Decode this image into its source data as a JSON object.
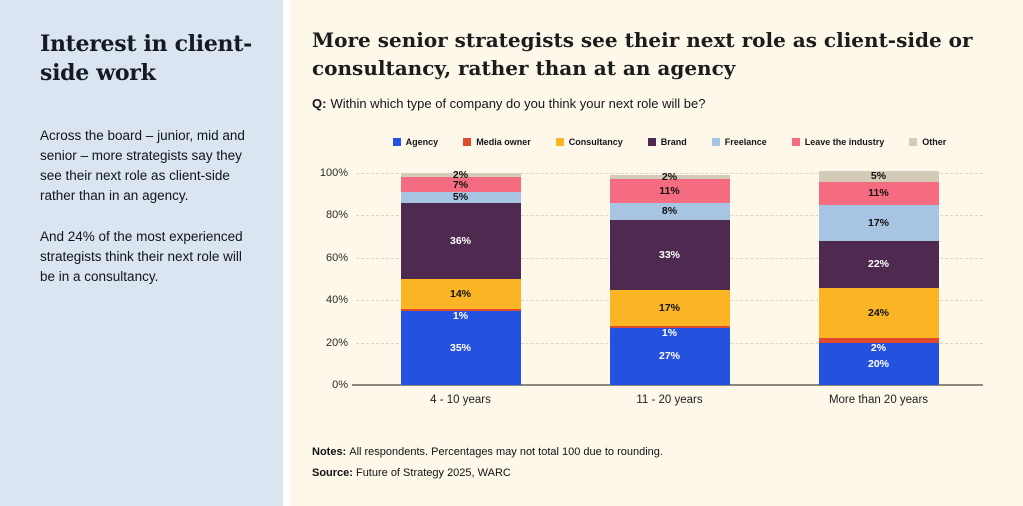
{
  "sidebar": {
    "title": "Interest in client-side work",
    "paragraphs": [
      "Across the board – junior, mid and senior – more strategists say they see their next role as client-side rather than in an agency.",
      "And 24% of the most experienced strategists think their next role will be in a consultancy."
    ],
    "background_color": "#dbe5f1"
  },
  "main": {
    "title": "More senior strategists see their next role as client-side or consultancy, rather than at an agency",
    "question_prefix": "Q:",
    "question": "Within which type of company do you think your next role will be?",
    "notes_prefix": "Notes:",
    "notes": "All respondents. Percentages may not total 100 due to rounding.",
    "source_prefix": "Source:",
    "source": "Future of Strategy 2025, WARC",
    "background_color": "#fdf8e9"
  },
  "chart_data": {
    "type": "bar",
    "stacked": true,
    "categories": [
      "4 - 10 years",
      "11 - 20 years",
      "More than 20 years"
    ],
    "series": [
      {
        "name": "Agency",
        "color": "#2452df",
        "label_color": "#ffffff",
        "values": [
          35,
          27,
          20
        ]
      },
      {
        "name": "Media owner",
        "color": "#dd4a2e",
        "label_color": "#ffffff",
        "values": [
          1,
          1,
          2
        ]
      },
      {
        "name": "Consultancy",
        "color": "#fbb524",
        "label_color": "#101010",
        "values": [
          14,
          17,
          24
        ]
      },
      {
        "name": "Brand",
        "color": "#4e2a50",
        "label_color": "#ffffff",
        "values": [
          36,
          33,
          22
        ]
      },
      {
        "name": "Freelance",
        "color": "#a7c4e2",
        "label_color": "#101010",
        "values": [
          5,
          8,
          17
        ]
      },
      {
        "name": "Leave the industry",
        "color": "#f56c80",
        "label_color": "#101010",
        "values": [
          7,
          11,
          11
        ]
      },
      {
        "name": "Other",
        "color": "#d3cab8",
        "label_color": "#101010",
        "values": [
          2,
          2,
          5
        ]
      }
    ],
    "yticks": [
      0,
      20,
      40,
      60,
      80,
      100
    ],
    "ytick_suffix": "%",
    "ylim": [
      0,
      100
    ],
    "value_suffix": "%",
    "grid": "horizontal-dashed",
    "legend_position": "top"
  }
}
